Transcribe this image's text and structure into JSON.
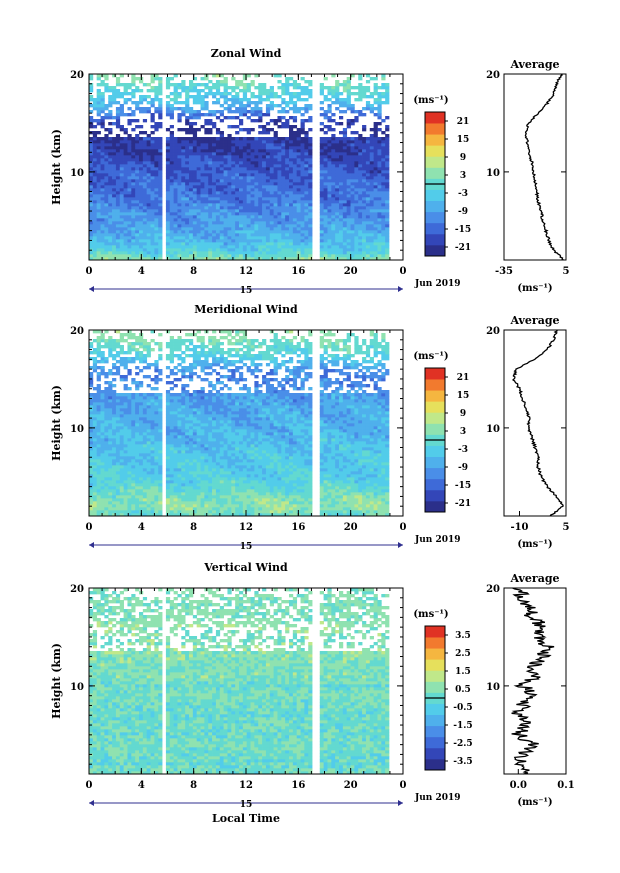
{
  "chart_data": [
    {
      "type": "heatmap",
      "title": "Zonal Wind",
      "ylabel": "Height (km)",
      "units": "(ms⁻¹)",
      "x_ticks": [
        "0",
        "4",
        "8",
        "12",
        "16",
        "20",
        "0"
      ],
      "xlim": [
        0,
        24
      ],
      "y_ticks": [
        "10",
        "20"
      ],
      "ylim": [
        1,
        20
      ],
      "date_day": "15",
      "date_month": "Jun 2019",
      "colorbar_ticks": [
        "21",
        "15",
        "9",
        "3",
        "-3",
        "-9",
        "-15",
        "-21"
      ],
      "colorbar_range": [
        -24,
        24
      ],
      "missing_intervals": [
        [
          5.7,
          6.0
        ],
        [
          17.1,
          17.6
        ]
      ],
      "profile_by_height": {
        "heights": [
          1,
          2,
          3,
          4,
          5,
          6,
          7,
          8,
          9,
          10,
          11,
          12,
          13,
          14,
          15,
          16,
          17,
          18,
          19,
          20
        ],
        "values": [
          4,
          -3,
          -6,
          -8,
          -10,
          -11,
          -13,
          -14,
          -15,
          -16,
          -17,
          -19,
          -20,
          -21,
          -19,
          -13,
          -7,
          -3,
          -1,
          2
        ]
      }
    },
    {
      "type": "heatmap",
      "title": "Meridional Wind",
      "ylabel": "Height (km)",
      "units": "(ms⁻¹)",
      "x_ticks": [
        "0",
        "4",
        "8",
        "12",
        "16",
        "20",
        "0"
      ],
      "xlim": [
        0,
        24
      ],
      "y_ticks": [
        "10",
        "20"
      ],
      "ylim": [
        1,
        20
      ],
      "date_day": "15",
      "date_month": "Jun 2019",
      "colorbar_ticks": [
        "21",
        "15",
        "9",
        "3",
        "-3",
        "-9",
        "-15",
        "-21"
      ],
      "colorbar_range": [
        -24,
        24
      ],
      "missing_intervals": [
        [
          5.7,
          6.0
        ],
        [
          17.1,
          17.6
        ]
      ],
      "profile_by_height": {
        "heights": [
          1,
          2,
          3,
          4,
          5,
          6,
          7,
          8,
          9,
          10,
          11,
          12,
          13,
          14,
          15,
          16,
          17,
          18,
          19,
          20
        ],
        "values": [
          0,
          4,
          2,
          -1,
          -3,
          -4,
          -4,
          -5,
          -6,
          -7,
          -7,
          -8,
          -9,
          -10,
          -12,
          -11,
          -5,
          -1,
          1,
          2
        ]
      }
    },
    {
      "type": "heatmap",
      "title": "Vertical Wind",
      "ylabel": "Height (km)",
      "xlabel": "Local Time",
      "units": "(ms⁻¹)",
      "x_ticks": [
        "0",
        "4",
        "8",
        "12",
        "16",
        "20",
        "0"
      ],
      "xlim": [
        0,
        24
      ],
      "y_ticks": [
        "10",
        "20"
      ],
      "ylim": [
        1,
        20
      ],
      "date_day": "15",
      "date_month": "Jun 2019",
      "colorbar_ticks": [
        "3.5",
        "2.5",
        "1.5",
        "0.5",
        "-0.5",
        "-1.5",
        "-2.5",
        "-3.5"
      ],
      "colorbar_range": [
        -4,
        4
      ],
      "missing_intervals": [
        [
          5.7,
          6.0
        ],
        [
          17.1,
          17.6
        ]
      ],
      "profile_by_height": {
        "heights": [
          1,
          2,
          3,
          4,
          5,
          6,
          7,
          8,
          9,
          10,
          11,
          12,
          13,
          14,
          15,
          16,
          17,
          18,
          19,
          20
        ],
        "values": [
          0.02,
          0.0,
          0.01,
          0.03,
          0.0,
          0.02,
          0.0,
          0.01,
          0.03,
          0.01,
          0.04,
          0.03,
          0.05,
          0.06,
          0.04,
          0.05,
          0.03,
          0.02,
          0.01,
          0.0
        ]
      }
    }
  ],
  "profiles": [
    {
      "title": "Average",
      "units": "(ms⁻¹)",
      "x_ticks": [
        "-35",
        "5"
      ],
      "xlim": [
        -35,
        5
      ],
      "y_ticks": [
        "10",
        "20"
      ],
      "ylim": [
        1,
        20
      ]
    },
    {
      "title": "Average",
      "units": "(ms⁻¹)",
      "x_ticks": [
        "-10",
        "5"
      ],
      "xlim": [
        -15,
        5
      ],
      "y_ticks": [
        "10",
        "20"
      ],
      "ylim": [
        1,
        20
      ]
    },
    {
      "title": "Average",
      "units": "(ms⁻¹)",
      "x_ticks": [
        "0.0",
        "0.1"
      ],
      "xlim": [
        -0.03,
        0.1
      ],
      "y_ticks": [
        "10",
        "20"
      ],
      "ylim": [
        1,
        20
      ]
    }
  ],
  "colors": {
    "scale": [
      "#2b2f8a",
      "#3346b8",
      "#3e6ad8",
      "#4a8ee8",
      "#4fb0ec",
      "#52ccea",
      "#63d9d0",
      "#8fe2b0",
      "#c0e88a",
      "#e6e05c",
      "#f5b640",
      "#f27a2e",
      "#e03224"
    ]
  }
}
